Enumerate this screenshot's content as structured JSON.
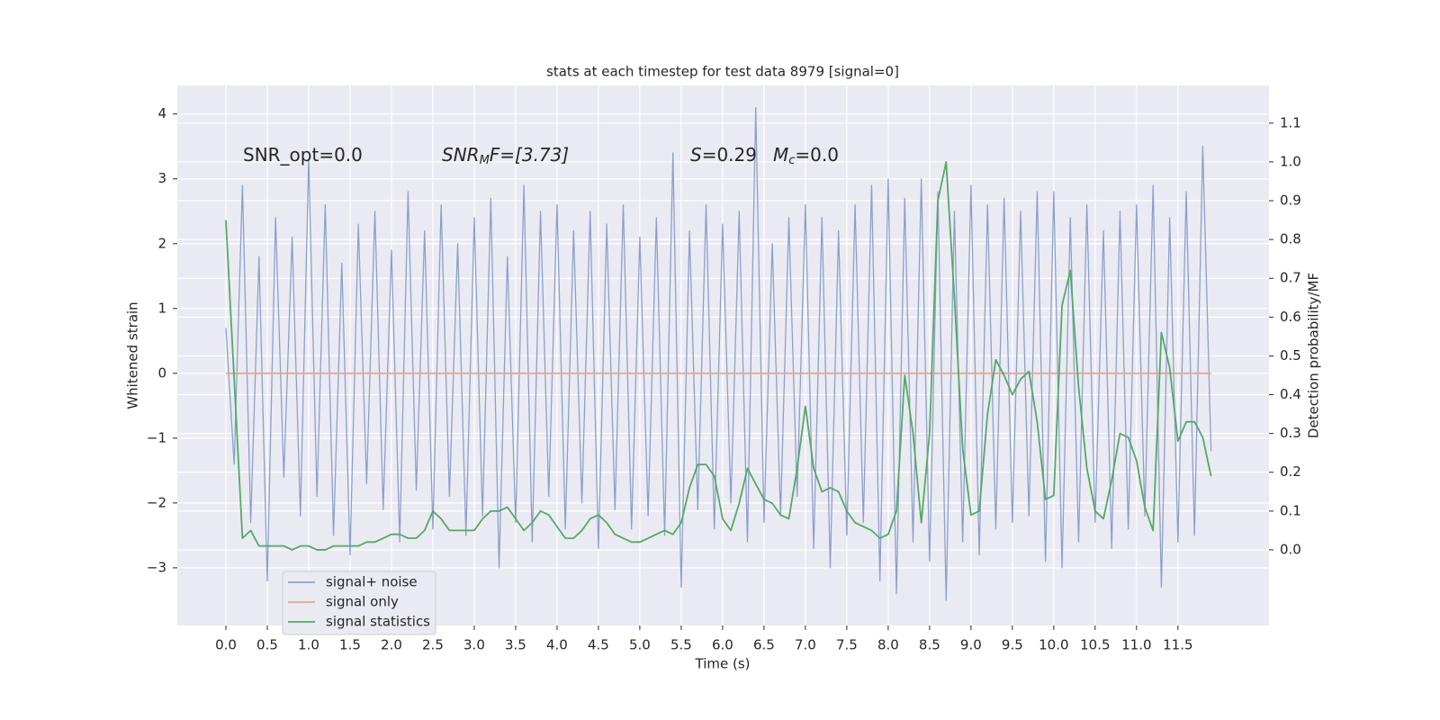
{
  "chart_data": {
    "type": "line",
    "title": "stats at each timestep for test data 8979 [signal=0]",
    "xlabel": "Time (s)",
    "ylabel": "Whitened strain",
    "y2label": "Detection probability/MF",
    "annotations": [
      [
        "SNR_opt=0.0"
      ],
      [
        "SNR",
        "M",
        "F=[3.73]"
      ],
      [
        "S",
        "=0.29"
      ],
      [
        "M",
        "c",
        "=0.0"
      ]
    ],
    "x": [
      0,
      0.1,
      0.2,
      0.3,
      0.4,
      0.5,
      0.6,
      0.7,
      0.8,
      0.9,
      1,
      1.1,
      1.2,
      1.3,
      1.4,
      1.5,
      1.6,
      1.7,
      1.8,
      1.9,
      2,
      2.1,
      2.2,
      2.3,
      2.4,
      2.5,
      2.6,
      2.7,
      2.8,
      2.9,
      3,
      3.1,
      3.2,
      3.3,
      3.4,
      3.5,
      3.6,
      3.7,
      3.8,
      3.9,
      4,
      4.1,
      4.2,
      4.3,
      4.4,
      4.5,
      4.6,
      4.7,
      4.8,
      4.9,
      5,
      5.1,
      5.2,
      5.3,
      5.4,
      5.5,
      5.6,
      5.7,
      5.8,
      5.9,
      6,
      6.1,
      6.2,
      6.3,
      6.4,
      6.5,
      6.6,
      6.7,
      6.8,
      6.9,
      7,
      7.1,
      7.2,
      7.3,
      7.4,
      7.5,
      7.6,
      7.7,
      7.8,
      7.9,
      8,
      8.1,
      8.2,
      8.3,
      8.4,
      8.5,
      8.6,
      8.7,
      8.8,
      8.9,
      9,
      9.1,
      9.2,
      9.3,
      9.4,
      9.5,
      9.6,
      9.7,
      9.8,
      9.9,
      10,
      10.1,
      10.2,
      10.3,
      10.4,
      10.5,
      10.6,
      10.7,
      10.8,
      10.9,
      11,
      11.1,
      11.2,
      11.3,
      11.4,
      11.5,
      11.6,
      11.7,
      11.8,
      11.9
    ],
    "series": [
      {
        "name": "signal+ noise",
        "color": "#8da0cb",
        "axis": "y",
        "values": [
          0.7,
          -1.4,
          2.9,
          -2.3,
          1.8,
          -3.2,
          2.4,
          -1.6,
          2.1,
          -2.2,
          3.3,
          -1.9,
          2.6,
          -2.5,
          1.7,
          -2.8,
          2.3,
          -1.7,
          2.5,
          -2.1,
          1.9,
          -2.6,
          2.8,
          -1.8,
          2.2,
          -2.4,
          2.6,
          -1.9,
          2.0,
          -2.5,
          2.4,
          -2.2,
          2.7,
          -3.0,
          1.8,
          -2.3,
          2.9,
          -2.6,
          2.5,
          -1.9,
          2.6,
          -2.4,
          2.2,
          -2.0,
          2.5,
          -2.7,
          2.3,
          -2.1,
          2.6,
          -2.4,
          2.1,
          -2.2,
          2.4,
          -2.5,
          3.4,
          -3.3,
          2.2,
          -2.1,
          2.6,
          -2.4,
          2.3,
          -2.0,
          2.5,
          -2.6,
          4.1,
          -2.3,
          2.0,
          -2.2,
          2.4,
          -1.9,
          2.6,
          -2.7,
          2.4,
          -3.0,
          2.2,
          -2.5,
          2.6,
          -2.3,
          2.9,
          -3.2,
          3.0,
          -3.4,
          2.7,
          -2.6,
          3.0,
          -2.9,
          2.8,
          -3.5,
          2.5,
          -2.6,
          2.9,
          -2.8,
          2.6,
          -2.4,
          2.7,
          -2.3,
          2.5,
          -2.2,
          2.8,
          -2.9,
          2.8,
          -3.0,
          2.4,
          -2.6,
          2.6,
          -2.3,
          2.2,
          -2.7,
          2.5,
          -2.4,
          2.6,
          -2.2,
          2.9,
          -3.3,
          2.4,
          -2.6,
          2.8,
          -2.5,
          3.5,
          -1.2
        ]
      },
      {
        "name": "signal only",
        "color": "#e5a98a",
        "axis": "y",
        "values": [
          0,
          0,
          0,
          0,
          0,
          0,
          0,
          0,
          0,
          0,
          0,
          0,
          0,
          0,
          0,
          0,
          0,
          0,
          0,
          0,
          0,
          0,
          0,
          0,
          0,
          0,
          0,
          0,
          0,
          0,
          0,
          0,
          0,
          0,
          0,
          0,
          0,
          0,
          0,
          0,
          0,
          0,
          0,
          0,
          0,
          0,
          0,
          0,
          0,
          0,
          0,
          0,
          0,
          0,
          0,
          0,
          0,
          0,
          0,
          0,
          0,
          0,
          0,
          0,
          0,
          0,
          0,
          0,
          0,
          0,
          0,
          0,
          0,
          0,
          0,
          0,
          0,
          0,
          0,
          0,
          0,
          0,
          0,
          0,
          0,
          0,
          0,
          0,
          0,
          0,
          0,
          0,
          0,
          0,
          0,
          0,
          0,
          0,
          0,
          0,
          0,
          0,
          0,
          0,
          0,
          0,
          0,
          0,
          0,
          0,
          0,
          0,
          0,
          0,
          0,
          0,
          0,
          0,
          0,
          0
        ]
      },
      {
        "name": "signal statistics",
        "color": "#55a868",
        "axis": "y2",
        "values": [
          0.85,
          0.44,
          0.03,
          0.05,
          0.01,
          0.01,
          0.01,
          0.01,
          0.0,
          0.01,
          0.01,
          0.0,
          0.0,
          0.01,
          0.01,
          0.01,
          0.01,
          0.02,
          0.02,
          0.03,
          0.04,
          0.04,
          0.03,
          0.03,
          0.05,
          0.1,
          0.08,
          0.05,
          0.05,
          0.05,
          0.05,
          0.08,
          0.1,
          0.1,
          0.11,
          0.08,
          0.05,
          0.07,
          0.1,
          0.09,
          0.06,
          0.03,
          0.03,
          0.05,
          0.08,
          0.09,
          0.07,
          0.04,
          0.03,
          0.02,
          0.02,
          0.03,
          0.04,
          0.05,
          0.04,
          0.07,
          0.16,
          0.22,
          0.22,
          0.19,
          0.08,
          0.05,
          0.12,
          0.21,
          0.17,
          0.13,
          0.12,
          0.09,
          0.08,
          0.21,
          0.37,
          0.21,
          0.15,
          0.16,
          0.15,
          0.1,
          0.07,
          0.06,
          0.05,
          0.03,
          0.04,
          0.1,
          0.45,
          0.3,
          0.07,
          0.3,
          0.9,
          1.0,
          0.65,
          0.26,
          0.09,
          0.1,
          0.35,
          0.49,
          0.45,
          0.4,
          0.44,
          0.46,
          0.33,
          0.13,
          0.14,
          0.63,
          0.72,
          0.42,
          0.21,
          0.1,
          0.08,
          0.18,
          0.3,
          0.29,
          0.23,
          0.11,
          0.05,
          0.56,
          0.47,
          0.28,
          0.33,
          0.33,
          0.29,
          0.19
        ]
      }
    ],
    "xlim": [
      -0.587,
      12.6
    ],
    "xticks": [
      {
        "value": 0,
        "label": "0.0"
      },
      0.5,
      {
        "value": 1,
        "label": "1.0"
      },
      1.5,
      {
        "value": 2,
        "label": "2.0"
      },
      2.5,
      {
        "value": 3,
        "label": "3.0"
      },
      3.5,
      {
        "value": 4,
        "label": "4.0"
      },
      4.5,
      {
        "value": 5,
        "label": "5.0"
      },
      5.5,
      {
        "value": 6,
        "label": "6.0"
      },
      6.5,
      {
        "value": 7,
        "label": "7.0"
      },
      7.5,
      {
        "value": 8,
        "label": "8.0"
      },
      8.5,
      {
        "value": 9,
        "label": "9.0"
      },
      9.5,
      {
        "value": 10,
        "label": "10.0"
      },
      10.5,
      {
        "value": 11,
        "label": "11.0"
      },
      11.5
    ],
    "ylim": [
      -3.89,
      4.44
    ],
    "yticks": [
      {
        "value": -3,
        "label": "−3"
      },
      {
        "value": -2,
        "label": "−2"
      },
      {
        "value": -1,
        "label": "−1"
      },
      0,
      1,
      2,
      3,
      4
    ],
    "y2lim": [
      -0.195,
      1.197
    ],
    "y2ticks": [
      {
        "value": 0,
        "label": "0.0"
      },
      0.1,
      0.2,
      0.3,
      0.4,
      0.5,
      0.6,
      0.7,
      0.8,
      0.9,
      {
        "value": 1,
        "label": "1.0"
      },
      1.1
    ],
    "grid": true,
    "legend": "lower left",
    "background": "#eaeaf2"
  }
}
